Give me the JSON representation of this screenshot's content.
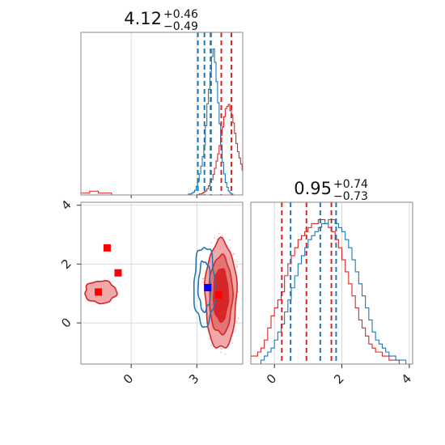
{
  "colors": {
    "red": "#d62728",
    "blue": "#1f77b4",
    "marker_red": "#ff0000",
    "marker_blue": "#0000ff",
    "fill_light": "#f0a8a8",
    "fill_mid": "#e37474",
    "fill_dark": "#d62728",
    "scatter": "#f5b8d0"
  },
  "chart_data": [
    {
      "type": "histogram",
      "panel": "top-left",
      "title": {
        "value": "4.12",
        "plus": "+0.46",
        "minus": "−0.49"
      },
      "xlim": [
        -2.3,
        5.1
      ],
      "red_quantiles": [
        3.63,
        4.12,
        4.58
      ],
      "blue_quantiles": [
        3.05,
        3.35,
        3.65
      ],
      "blue_series": {
        "bin_start": 2.2,
        "bin_width": 0.07,
        "counts": [
          0,
          0,
          0,
          0,
          0,
          0,
          1,
          1,
          2,
          3,
          5,
          9,
          14,
          22,
          30,
          40,
          52,
          72,
          95,
          110,
          128,
          144,
          152,
          138,
          118,
          96,
          74,
          52,
          34,
          22,
          13,
          8,
          4,
          2,
          1,
          0
        ]
      },
      "red_series": {
        "bin_start": 2.2,
        "bin_width": 0.07,
        "counts": [
          0,
          0,
          0,
          0,
          0,
          0,
          0,
          0,
          0,
          0,
          0,
          0,
          0,
          1,
          1,
          2,
          3,
          4,
          6,
          9,
          12,
          15,
          20,
          26,
          33,
          40,
          48,
          58,
          66,
          76,
          84,
          86,
          88,
          82,
          78,
          70,
          60,
          50,
          42,
          36,
          30,
          24,
          18,
          12,
          8,
          5,
          3,
          2,
          1,
          0
        ]
      },
      "red_tail": {
        "x": [
          -2.3,
          -2.1,
          -1.9,
          -1.7,
          -1.5,
          -1.3,
          -1.1,
          -0.9,
          -0.7
        ],
        "counts": [
          1,
          1,
          2,
          2,
          1,
          1,
          1,
          0,
          0
        ]
      }
    },
    {
      "type": "histogram",
      "panel": "bottom-right",
      "title": {
        "value": "0.95",
        "plus": "+0.74",
        "minus": "−0.73"
      },
      "xlim": [
        -0.7,
        4.1
      ],
      "x_ticks": [
        "0",
        "2",
        "4"
      ],
      "x_tick_values": [
        0,
        2,
        4
      ],
      "red_quantiles": [
        0.22,
        0.95,
        1.69
      ],
      "blue_quantiles": [
        0.48,
        1.36,
        1.83
      ],
      "red_series": {
        "bin_start": -0.7,
        "bin_width": 0.1,
        "counts": [
          2,
          2,
          3,
          4,
          6,
          9,
          12,
          14,
          16,
          18,
          22,
          25,
          27,
          29,
          31,
          32,
          33,
          34,
          35,
          35,
          36,
          36,
          35,
          34,
          33,
          31,
          29,
          26,
          23,
          20,
          17,
          14,
          11,
          9,
          7,
          5,
          4,
          3,
          3,
          2,
          2,
          1,
          1,
          1,
          0,
          0,
          0,
          0
        ]
      },
      "blue_series": {
        "bin_start": -0.7,
        "bin_width": 0.1,
        "counts": [
          0,
          0,
          0,
          1,
          2,
          3,
          4,
          6,
          8,
          10,
          13,
          16,
          19,
          22,
          25,
          27,
          29,
          31,
          32,
          33,
          34,
          35,
          35,
          36,
          36,
          35,
          34,
          33,
          31,
          29,
          26,
          23,
          20,
          17,
          14,
          11,
          8,
          6,
          5,
          4,
          3,
          2,
          2,
          1,
          1,
          1,
          0,
          0
        ]
      }
    },
    {
      "type": "contour",
      "panel": "bottom-left",
      "xlim": [
        -2.3,
        5.1
      ],
      "ylim": [
        -1.4,
        4.1
      ],
      "x_ticks": [
        "0",
        "3"
      ],
      "x_tick_values": [
        0,
        3
      ],
      "y_ticks": [
        "0",
        "2",
        "4"
      ],
      "y_tick_values": [
        0,
        2,
        4
      ],
      "red_center": [
        4.1,
        0.95
      ],
      "red_levels": [
        {
          "rx": 0.72,
          "ry": 1.85
        },
        {
          "rx": 0.53,
          "ry": 1.33
        },
        {
          "rx": 0.34,
          "ry": 0.9
        }
      ],
      "blue_center": [
        3.35,
        1.25
      ],
      "blue_levels": [
        {
          "rx": 0.48,
          "ry": 1.35
        },
        {
          "rx": 0.28,
          "ry": 0.85
        }
      ],
      "red_side_blob": {
        "center": [
          -1.4,
          1.05
        ],
        "rx": 0.72,
        "ry": 0.38
      },
      "red_markers": [
        {
          "x": -1.1,
          "y": 2.55
        },
        {
          "x": -0.6,
          "y": 1.7
        },
        {
          "x": -1.5,
          "y": 1.05
        },
        {
          "x": 4.0,
          "y": 0.95
        }
      ],
      "blue_markers": [
        {
          "x": 3.5,
          "y": 1.2
        }
      ]
    }
  ]
}
